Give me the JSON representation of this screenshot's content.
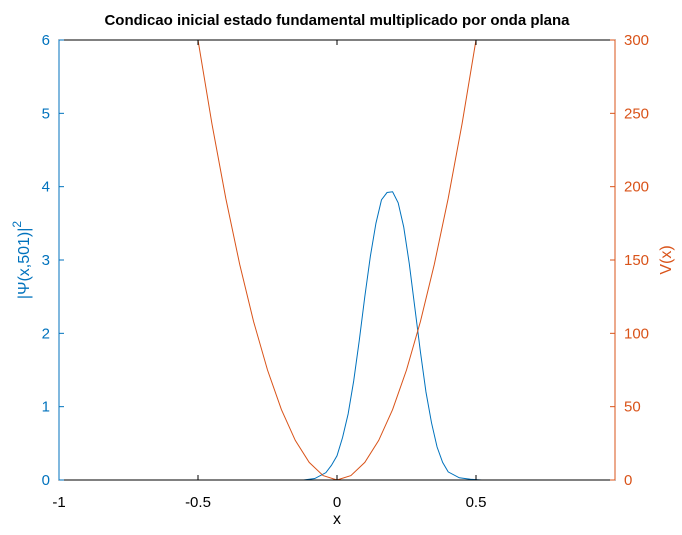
{
  "chart_data": {
    "type": "line",
    "title": "Condicao inicial estado fundamental multiplicado por onda plana",
    "xlabel": "x",
    "ylabel_left": "|Ψ(x,501)|",
    "ylabel_left_superscript": "2",
    "ylabel_right": "V(x)",
    "xlim": [
      -1,
      1
    ],
    "ylim_left": [
      0,
      6
    ],
    "ylim_right": [
      0,
      300
    ],
    "x_ticks": [
      "-1",
      "-0.5",
      "0",
      "0.5"
    ],
    "y_left_ticks": [
      "0",
      "1",
      "2",
      "3",
      "4",
      "5",
      "6"
    ],
    "y_right_ticks": [
      "0",
      "50",
      "100",
      "150",
      "200",
      "250",
      "300"
    ],
    "grid": false,
    "colors": {
      "left": "#0072BD",
      "right": "#D95319",
      "axes": "#000000"
    },
    "series": [
      {
        "axis": "left",
        "x": [
          -0.12,
          -0.08,
          -0.04,
          -0.02,
          0.0,
          0.02,
          0.04,
          0.06,
          0.08,
          0.1,
          0.12,
          0.14,
          0.16,
          0.18,
          0.2,
          0.22,
          0.24,
          0.26,
          0.28,
          0.3,
          0.32,
          0.34,
          0.36,
          0.38,
          0.4,
          0.44,
          0.48,
          0.52
        ],
        "values": [
          0.0,
          0.02,
          0.1,
          0.2,
          0.33,
          0.58,
          0.9,
          1.35,
          1.9,
          2.5,
          3.05,
          3.5,
          3.82,
          3.92,
          3.93,
          3.78,
          3.45,
          2.95,
          2.35,
          1.75,
          1.2,
          0.78,
          0.45,
          0.24,
          0.11,
          0.03,
          0.01,
          0.0
        ]
      },
      {
        "axis": "right",
        "x": [
          -0.5,
          -0.45,
          -0.4,
          -0.35,
          -0.3,
          -0.25,
          -0.2,
          -0.15,
          -0.1,
          -0.05,
          0.0
        ],
        "values": [
          300,
          243,
          192,
          147,
          108,
          75,
          48,
          27,
          12,
          3,
          0
        ]
      },
      {
        "axis": "right",
        "x": [
          0.0,
          0.05,
          0.1,
          0.15,
          0.2,
          0.25,
          0.3,
          0.35,
          0.4,
          0.45,
          0.5
        ],
        "values": [
          0,
          3,
          12,
          27,
          48,
          75,
          108,
          147,
          192,
          243,
          300
        ]
      }
    ]
  }
}
